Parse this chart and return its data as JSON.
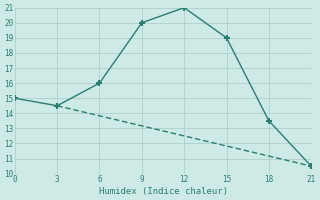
{
  "line1_x": [
    0,
    3,
    6,
    9,
    12,
    15,
    18,
    21
  ],
  "line1_y": [
    15,
    14.5,
    16,
    20,
    21,
    19,
    13.5,
    10.5
  ],
  "line2_x": [
    3,
    21
  ],
  "line2_y": [
    14.5,
    10.5
  ],
  "line_color": "#2a7d6f",
  "bg_color": "#ceeae6",
  "grid_color": "#aecfcb",
  "xlabel": "Humidex (Indice chaleur)",
  "xlim": [
    0,
    21
  ],
  "ylim": [
    10,
    21
  ],
  "xticks": [
    0,
    3,
    6,
    9,
    12,
    15,
    18,
    21
  ],
  "yticks": [
    10,
    11,
    12,
    13,
    14,
    15,
    16,
    17,
    18,
    19,
    20,
    21
  ],
  "marker": "+",
  "markersize": 5,
  "markeredgewidth": 1.5,
  "linewidth": 1.0,
  "tick_fontsize": 5.5,
  "xlabel_fontsize": 6.5
}
